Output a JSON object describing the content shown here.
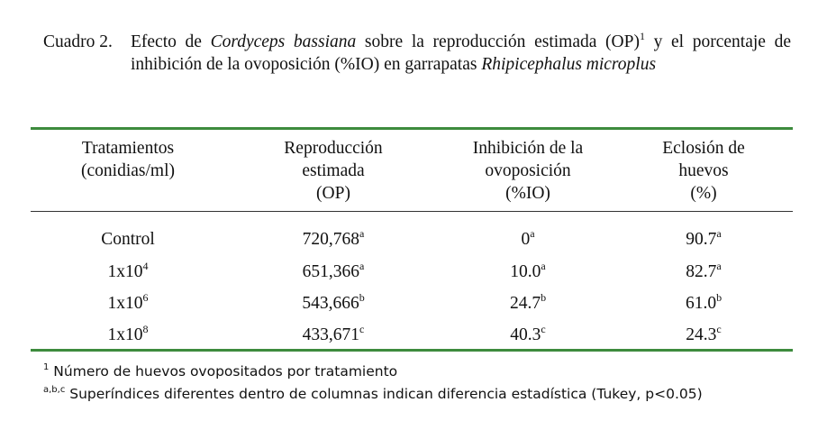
{
  "caption": {
    "label": "Cuadro 2.",
    "text_a": "Efecto de ",
    "species_a": "Cordyceps bassiana",
    "text_b": " sobre la reproducción estimada (OP)",
    "sup": "1",
    "text_c": " y el porcentaje de inhibición de la ovoposición (%IO) en garrapatas ",
    "species_b": "Rhipicephalus microplus"
  },
  "table": {
    "headers": [
      [
        "Tratamientos",
        "(conidias/ml)"
      ],
      [
        "Reproducción",
        "estimada",
        "(OP)"
      ],
      [
        "Inhibición de la",
        "ovoposición",
        "(%IO)"
      ],
      [
        "Eclosión de",
        "huevos",
        "(%)"
      ]
    ],
    "rows": [
      {
        "treatment": {
          "base": "Control",
          "exp": ""
        },
        "op": "720,768",
        "op_sup": "a",
        "io": "0",
        "io_sup": "a",
        "ecl": "90.7",
        "ecl_sup": "a"
      },
      {
        "treatment": {
          "base": "1x10",
          "exp": "4"
        },
        "op": "651,366",
        "op_sup": "a",
        "io": "10.0",
        "io_sup": "a",
        "ecl": "82.7",
        "ecl_sup": "a"
      },
      {
        "treatment": {
          "base": "1x10",
          "exp": "6"
        },
        "op": "543,666",
        "op_sup": "b",
        "io": "24.7",
        "io_sup": "b",
        "ecl": "61.0",
        "ecl_sup": "b"
      },
      {
        "treatment": {
          "base": "1x10",
          "exp": "8"
        },
        "op": "433,671",
        "op_sup": "c",
        "io": "40.3",
        "io_sup": "c",
        "ecl": "24.3",
        "ecl_sup": "c"
      }
    ]
  },
  "footnotes": [
    {
      "mark": "1",
      "text": " Número de huevos ovopositados por tratamiento"
    },
    {
      "mark": "a,b,c",
      "text": " Superíndices diferentes dentro de columnas  indican diferencia estadística (Tukey, p<0.05)"
    }
  ],
  "colors": {
    "rule_green": "#3d8b3d",
    "text": "#111111"
  }
}
